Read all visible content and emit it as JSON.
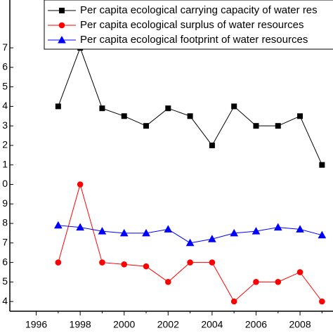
{
  "chart_data": {
    "type": "line",
    "x": [
      1997,
      1998,
      1999,
      2000,
      2001,
      2002,
      2003,
      2004,
      2005,
      2006,
      2007,
      2008,
      2009
    ],
    "series": [
      {
        "name": "Per capita ecological carrying capacity of water res",
        "color": "#000000",
        "marker": "square",
        "values": [
          14,
          17,
          13.9,
          13.5,
          13,
          13.9,
          13.5,
          12,
          14,
          13,
          13,
          13.5,
          11
        ]
      },
      {
        "name": "Per capita ecological surplus of water resources",
        "color": "#ff0000",
        "marker": "circle",
        "values": [
          6,
          10,
          6,
          5.9,
          5.8,
          5,
          6,
          6,
          4,
          5,
          5,
          5.5,
          4
        ]
      },
      {
        "name": "Per capita ecological footprint of water resources",
        "color": "#0000ff",
        "marker": "triangle",
        "values": [
          7.9,
          7.8,
          7.6,
          7.5,
          7.5,
          7.7,
          7,
          7.2,
          7.5,
          7.6,
          7.8,
          7.7,
          7.4
        ]
      }
    ],
    "xlim": [
      1994.8,
      2009.5
    ],
    "xticks": [
      1996,
      1998,
      2000,
      2002,
      2004,
      2006,
      2008
    ],
    "ylim": [
      3.5,
      19.5
    ],
    "yticks": [
      4,
      5,
      6,
      7,
      8,
      9,
      {
        "value": 10,
        "label": "0"
      },
      {
        "value": 11,
        "label": "1"
      },
      {
        "value": 12,
        "label": "2"
      },
      {
        "value": 13,
        "label": "3"
      },
      {
        "value": 14,
        "label": "4"
      },
      {
        "value": 15,
        "label": "5"
      },
      {
        "value": 16,
        "label": "6"
      },
      {
        "value": 17,
        "label": "7"
      }
    ]
  }
}
